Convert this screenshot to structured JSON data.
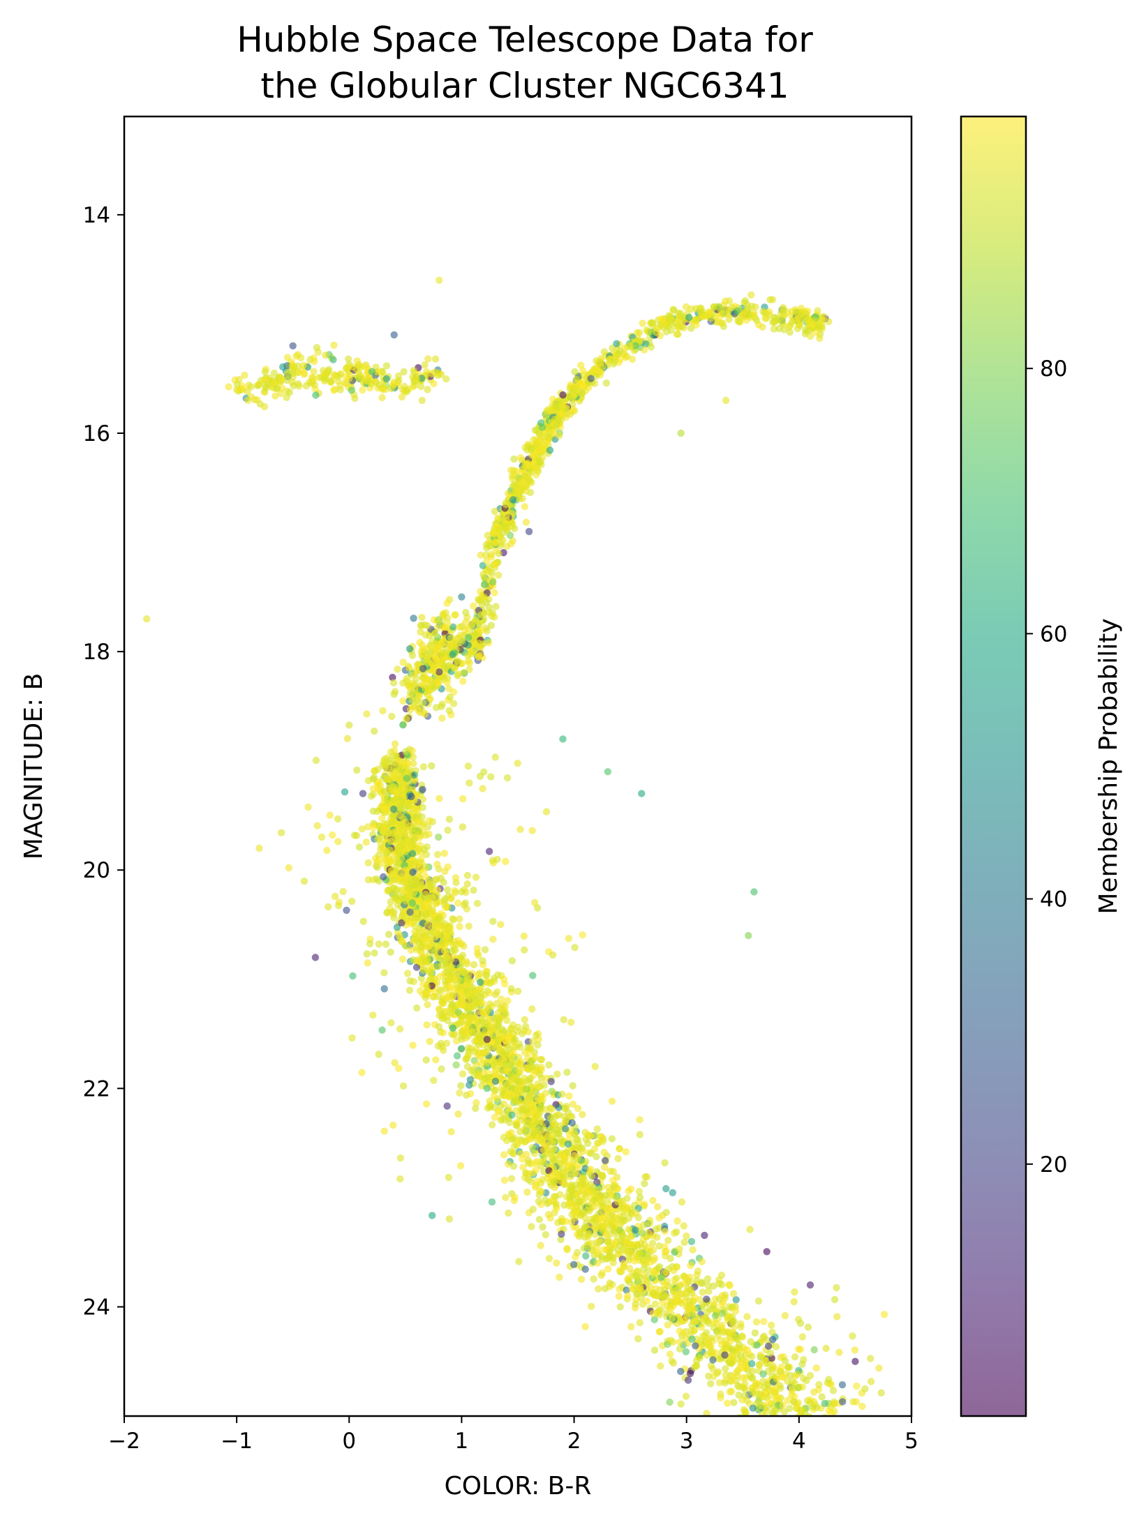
{
  "chart_data": {
    "type": "scatter",
    "title": [
      "Hubble Space Telescope Data for",
      "the Globular Cluster NGC6341"
    ],
    "xlabel": "COLOR: B-R",
    "ylabel": "MAGNITUDE: B",
    "xlim": [
      -2,
      5
    ],
    "ylim": [
      25,
      13.1
    ],
    "y_inverted": true,
    "xticks": [
      -2,
      -1,
      0,
      1,
      2,
      3,
      4,
      5
    ],
    "xtick_labels": [
      "−2",
      "−1",
      "0",
      "1",
      "2",
      "3",
      "4",
      "5"
    ],
    "yticks": [
      14,
      16,
      18,
      20,
      22,
      24
    ],
    "ytick_labels": [
      "14",
      "16",
      "18",
      "20",
      "22",
      "24"
    ],
    "colorbar": {
      "label": "Membership Probability",
      "range": [
        0,
        100
      ],
      "ticks": [
        20,
        40,
        60,
        80
      ],
      "tick_labels": [
        "20",
        "40",
        "60",
        "80"
      ],
      "colormap": "viridis"
    },
    "marker_alpha": 0.6,
    "grid": false,
    "series": [
      {
        "component": "horizontal-branch",
        "points": [
          [
            -1.0,
            15.6
          ],
          [
            -0.8,
            15.55
          ],
          [
            -0.6,
            15.5
          ],
          [
            -0.4,
            15.45
          ],
          [
            -0.2,
            15.45
          ],
          [
            0.0,
            15.5
          ],
          [
            0.2,
            15.55
          ],
          [
            0.4,
            15.55
          ],
          [
            0.6,
            15.5
          ],
          [
            0.8,
            15.45
          ],
          [
            -0.9,
            15.7
          ],
          [
            -0.5,
            15.4
          ],
          [
            0.1,
            15.4
          ],
          [
            0.3,
            15.6
          ]
        ],
        "probability": [
          97,
          96,
          97,
          98,
          95,
          97,
          96,
          98,
          97,
          96,
          97,
          95,
          96,
          97
        ]
      },
      {
        "component": "red-giant-branch",
        "points": [
          [
            1.1,
            18.0
          ],
          [
            1.2,
            17.5
          ],
          [
            1.3,
            17.0
          ],
          [
            1.4,
            16.8
          ],
          [
            1.5,
            16.5
          ],
          [
            1.6,
            16.3
          ],
          [
            1.7,
            16.1
          ],
          [
            1.8,
            15.9
          ],
          [
            1.9,
            15.75
          ],
          [
            2.0,
            15.6
          ],
          [
            2.2,
            15.4
          ],
          [
            2.5,
            15.2
          ],
          [
            2.8,
            15.0
          ],
          [
            3.2,
            14.9
          ],
          [
            3.6,
            14.9
          ],
          [
            4.0,
            14.95
          ],
          [
            4.2,
            15.0
          ]
        ],
        "probability": [
          97,
          96,
          98,
          97,
          96,
          97,
          98,
          96,
          97,
          95,
          97,
          96,
          97,
          98,
          96,
          97,
          95
        ]
      },
      {
        "component": "subgiant-branch",
        "points": [
          [
            0.6,
            18.5
          ],
          [
            0.65,
            18.3
          ],
          [
            0.7,
            18.1
          ],
          [
            0.8,
            18.0
          ],
          [
            0.9,
            17.95
          ],
          [
            1.0,
            17.9
          ]
        ],
        "probability": [
          96,
          97,
          95,
          97,
          96,
          97
        ]
      },
      {
        "component": "main-sequence",
        "points": [
          [
            0.45,
            19.0
          ],
          [
            0.45,
            19.5
          ],
          [
            0.5,
            20.0
          ],
          [
            0.7,
            20.5
          ],
          [
            0.9,
            21.0
          ],
          [
            1.2,
            21.5
          ],
          [
            1.5,
            22.0
          ],
          [
            1.8,
            22.5
          ],
          [
            2.1,
            23.0
          ],
          [
            2.5,
            23.5
          ],
          [
            3.0,
            24.0
          ],
          [
            3.5,
            24.5
          ],
          [
            4.0,
            25.0
          ]
        ],
        "probability": [
          97,
          96,
          97,
          95,
          97,
          96,
          97,
          96,
          95,
          97,
          96,
          97,
          96
        ]
      },
      {
        "component": "outliers",
        "points": [
          [
            -1.8,
            17.7
          ],
          [
            0.8,
            14.6
          ],
          [
            3.35,
            15.7
          ],
          [
            2.95,
            16.0
          ],
          [
            3.6,
            20.2
          ],
          [
            3.55,
            20.6
          ],
          [
            -0.8,
            19.8
          ],
          [
            -0.3,
            20.8
          ],
          [
            4.5,
            24.5
          ],
          [
            4.1,
            23.8
          ],
          [
            2.6,
            19.3
          ],
          [
            2.3,
            19.1
          ],
          [
            0.4,
            15.1
          ],
          [
            -0.5,
            15.2
          ],
          [
            2.15,
            15.5
          ],
          [
            1.6,
            16.9
          ],
          [
            1.0,
            17.5
          ],
          [
            1.9,
            18.8
          ],
          [
            1.9,
            15.65
          ]
        ],
        "probability": [
          95,
          96,
          95,
          88,
          70,
          80,
          96,
          10,
          5,
          8,
          60,
          72,
          30,
          25,
          25,
          20,
          45,
          65,
          3
        ]
      }
    ]
  }
}
